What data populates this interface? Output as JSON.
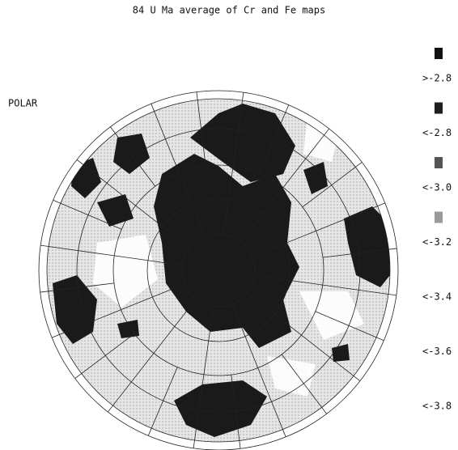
{
  "title": "84 U Ma average of Cr and Fe maps",
  "projection_label": "POLAR",
  "legend": {
    "items": [
      {
        "label": ">-2.8",
        "color": "#111111"
      },
      {
        "label": "<-2.8",
        "color": "#1e1e1e"
      },
      {
        "label": "<-3.0",
        "color": "#555555"
      },
      {
        "label": "<-3.2",
        "color": "#9a9a9a"
      },
      {
        "label": "<-3.4"
      },
      {
        "label": "<-3.6"
      },
      {
        "label": "<-3.8"
      }
    ]
  }
}
